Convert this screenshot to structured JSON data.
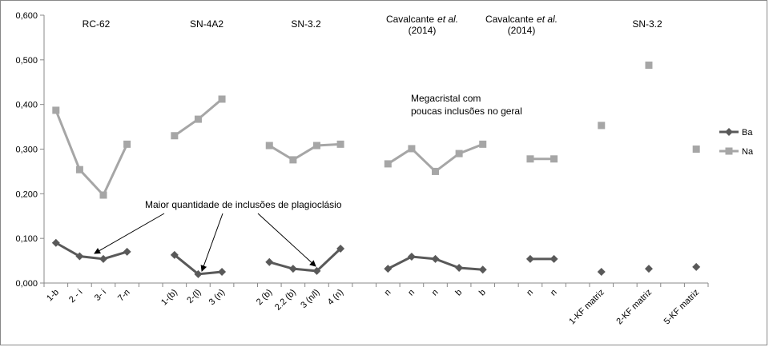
{
  "chart_data": {
    "type": "line",
    "group_labels": [
      {
        "text": "RC-62"
      },
      {
        "text": "SN-4A2"
      },
      {
        "text": "SN-3.2"
      },
      {
        "text": "Cavalcante",
        "italic": "et al.",
        "line2": "(2014)"
      },
      {
        "text": "Cavalcante",
        "italic": "et al.",
        "line2": "(2014)"
      },
      {
        "text": "SN-3.2"
      }
    ],
    "annotations": [
      "Megacristal com",
      "poucas inclusões no geral",
      "Maior  quantidade  de  inclusões de plagioclásio"
    ],
    "categories": [
      "1-b",
      "2 - i",
      "3- i",
      "7-n",
      null,
      "1-(b)",
      "2-(l)",
      "3 (n)",
      null,
      "2 (b)",
      "2.2 (b)",
      "3 (n/l)",
      "4 (n)",
      null,
      "n",
      "n",
      "n",
      "b",
      "b",
      null,
      "n",
      "n",
      null,
      "1-KF matriz",
      null,
      "2-KF matriz",
      null,
      "5-KF matriz"
    ],
    "series": [
      {
        "name": "Ba",
        "color": "#595959",
        "marker": "diamond",
        "values": [
          0.09,
          0.06,
          0.054,
          0.07,
          null,
          0.063,
          0.02,
          0.025,
          null,
          0.047,
          0.032,
          0.027,
          0.077,
          null,
          0.032,
          0.059,
          0.054,
          0.034,
          0.03,
          null,
          0.054,
          0.054,
          null,
          0.025,
          null,
          0.032,
          null,
          0.036
        ]
      },
      {
        "name": "Na",
        "color": "#a6a6a6",
        "marker": "square",
        "values": [
          0.387,
          0.254,
          0.197,
          0.311,
          null,
          0.33,
          0.367,
          0.412,
          null,
          0.308,
          0.276,
          0.308,
          0.311,
          null,
          0.267,
          0.301,
          0.25,
          0.29,
          0.311,
          null,
          0.278,
          0.278,
          null,
          0.353,
          null,
          0.488,
          null,
          0.3
        ]
      }
    ],
    "ylim": [
      0,
      0.6
    ],
    "yticks": [
      {
        "value": 0,
        "label": "0,000"
      },
      {
        "value": 0.1,
        "label": "0,100"
      },
      {
        "value": 0.2,
        "label": "0,200"
      },
      {
        "value": 0.3,
        "label": "0,300"
      },
      {
        "value": 0.4,
        "label": "0,400"
      },
      {
        "value": 0.5,
        "label": "0,500"
      },
      {
        "value": 0.6,
        "label": "0,600"
      }
    ],
    "grid": false,
    "legend": "right"
  }
}
